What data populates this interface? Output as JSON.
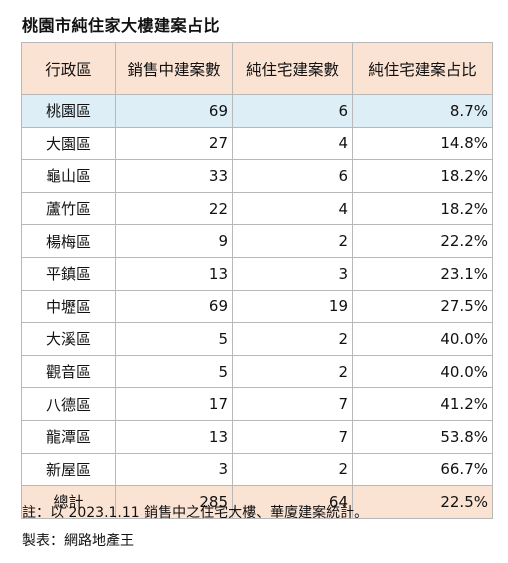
{
  "title": "桃園市純住家大樓建案占比",
  "headers": [
    "行政區",
    "銷售中建案數",
    "純住宅建案數",
    "純住宅建案占比"
  ],
  "rows": [
    {
      "district": "桃園區",
      "on_sale": "69",
      "residential": "6",
      "ratio": "8.7%"
    },
    {
      "district": "大園區",
      "on_sale": "27",
      "residential": "4",
      "ratio": "14.8%"
    },
    {
      "district": "龜山區",
      "on_sale": "33",
      "residential": "6",
      "ratio": "18.2%"
    },
    {
      "district": "蘆竹區",
      "on_sale": "22",
      "residential": "4",
      "ratio": "18.2%"
    },
    {
      "district": "楊梅區",
      "on_sale": "9",
      "residential": "2",
      "ratio": "22.2%"
    },
    {
      "district": "平鎮區",
      "on_sale": "13",
      "residential": "3",
      "ratio": "23.1%"
    },
    {
      "district": "中壢區",
      "on_sale": "69",
      "residential": "19",
      "ratio": "27.5%"
    },
    {
      "district": "大溪區",
      "on_sale": "5",
      "residential": "2",
      "ratio": "40.0%"
    },
    {
      "district": "觀音區",
      "on_sale": "5",
      "residential": "2",
      "ratio": "40.0%"
    },
    {
      "district": "八德區",
      "on_sale": "17",
      "residential": "7",
      "ratio": "41.2%"
    },
    {
      "district": "龍潭區",
      "on_sale": "13",
      "residential": "7",
      "ratio": "53.8%"
    },
    {
      "district": "新屋區",
      "on_sale": "3",
      "residential": "2",
      "ratio": "66.7%"
    }
  ],
  "total": {
    "district": "總計",
    "on_sale": "285",
    "residential": "64",
    "ratio": "22.5%"
  },
  "note": "註：以 2023.1.11 銷售中之住宅大樓、華廈建案統計。",
  "maker": "製表：網路地產王",
  "colors": {
    "header_bg": "#fbe3d4",
    "highlight_row_bg": "#ddeef7",
    "border": "#b8b8b8"
  }
}
